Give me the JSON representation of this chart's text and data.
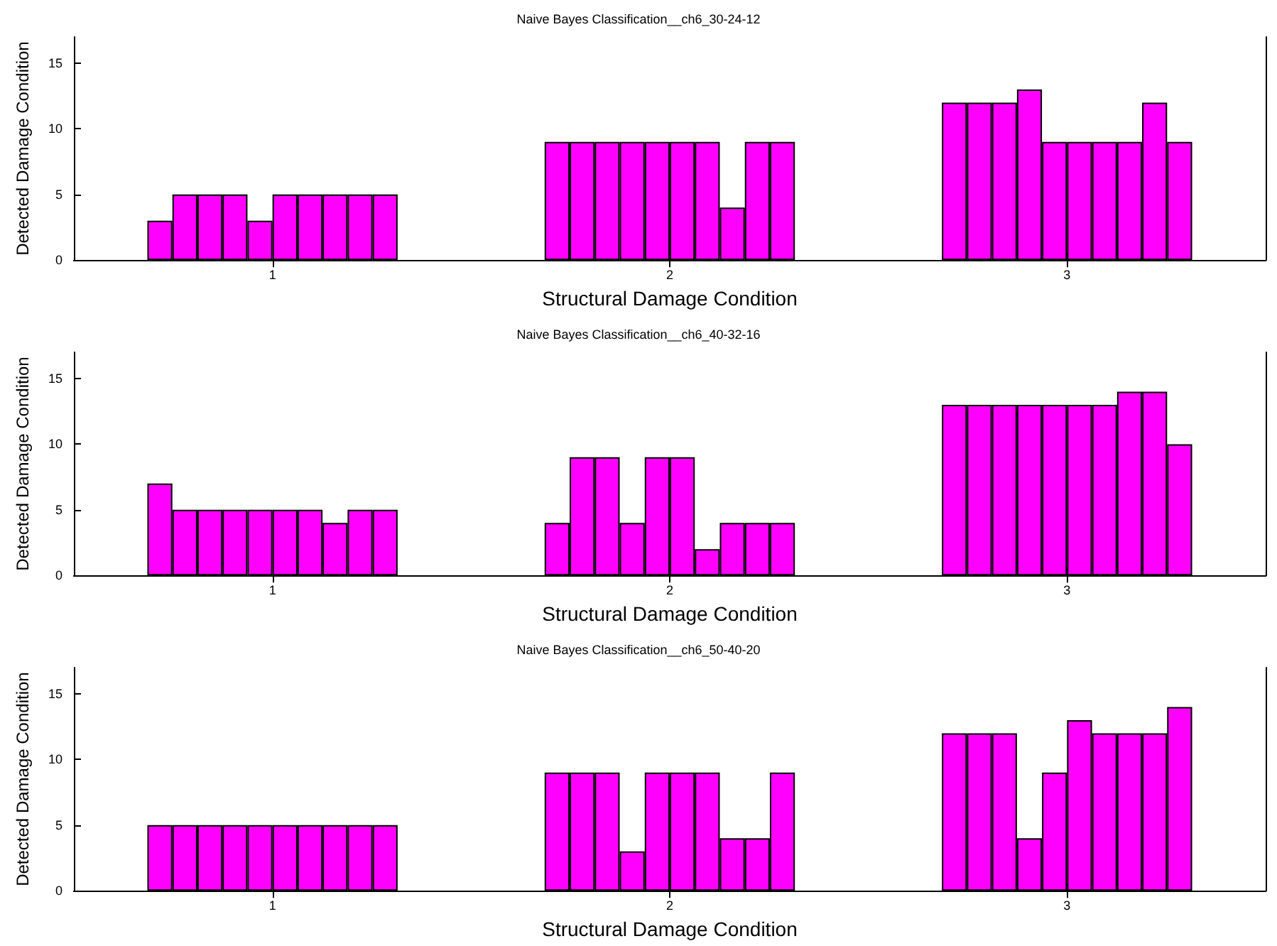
{
  "chart_data": [
    {
      "type": "bar",
      "title": "Naive Bayes Classification__ch6_30-24-12",
      "xlabel": "Structural Damage Condition",
      "ylabel": "Detected Damage Condition",
      "categories": [
        "1",
        "2",
        "3"
      ],
      "ylim": [
        0,
        17
      ],
      "yticks": [
        0,
        5,
        10,
        15
      ],
      "series": [
        {
          "color": "#ff00ff",
          "values": [
            3,
            9,
            12
          ]
        },
        {
          "color": "#ff00ff",
          "values": [
            5,
            9,
            12
          ]
        },
        {
          "color": "#ff00ff",
          "values": [
            5,
            9,
            12
          ]
        },
        {
          "color": "#ff00ff",
          "values": [
            5,
            9,
            13
          ]
        },
        {
          "color": "#ff00ff",
          "values": [
            3,
            9,
            9
          ]
        },
        {
          "color": "#ff00ff",
          "values": [
            5,
            9,
            9
          ]
        },
        {
          "color": "#ff00ff",
          "values": [
            5,
            9,
            9
          ]
        },
        {
          "color": "#ff00ff",
          "values": [
            5,
            4,
            9
          ]
        },
        {
          "color": "#ff00ff",
          "values": [
            5,
            9,
            12
          ]
        },
        {
          "color": "#ff00ff",
          "values": [
            5,
            9,
            9
          ]
        }
      ]
    },
    {
      "type": "bar",
      "title": "Naive Bayes Classification__ch6_40-32-16",
      "xlabel": "Structural Damage Condition",
      "ylabel": "Detected Damage Condition",
      "categories": [
        "1",
        "2",
        "3"
      ],
      "ylim": [
        0,
        17
      ],
      "yticks": [
        0,
        5,
        10,
        15
      ],
      "series": [
        {
          "color": "#ff00ff",
          "values": [
            7,
            4,
            13
          ]
        },
        {
          "color": "#ff00ff",
          "values": [
            5,
            9,
            13
          ]
        },
        {
          "color": "#ff00ff",
          "values": [
            5,
            9,
            13
          ]
        },
        {
          "color": "#ff00ff",
          "values": [
            5,
            4,
            13
          ]
        },
        {
          "color": "#ff00ff",
          "values": [
            5,
            9,
            13
          ]
        },
        {
          "color": "#ff00ff",
          "values": [
            5,
            9,
            13
          ]
        },
        {
          "color": "#ff00ff",
          "values": [
            5,
            2,
            13
          ]
        },
        {
          "color": "#ff00ff",
          "values": [
            4,
            4,
            14
          ]
        },
        {
          "color": "#ff00ff",
          "values": [
            5,
            4,
            14
          ]
        },
        {
          "color": "#ff00ff",
          "values": [
            5,
            4,
            10
          ]
        }
      ]
    },
    {
      "type": "bar",
      "title": "Naive Bayes Classification__ch6_50-40-20",
      "xlabel": "Structural Damage Condition",
      "ylabel": "Detected Damage Condition",
      "categories": [
        "1",
        "2",
        "3"
      ],
      "ylim": [
        0,
        17
      ],
      "yticks": [
        0,
        5,
        10,
        15
      ],
      "series": [
        {
          "color": "#ff00ff",
          "values": [
            5,
            9,
            12
          ]
        },
        {
          "color": "#ff00ff",
          "values": [
            5,
            9,
            12
          ]
        },
        {
          "color": "#ff00ff",
          "values": [
            5,
            9,
            12
          ]
        },
        {
          "color": "#ff00ff",
          "values": [
            5,
            3,
            4
          ]
        },
        {
          "color": "#ff00ff",
          "values": [
            5,
            9,
            9
          ]
        },
        {
          "color": "#ff00ff",
          "values": [
            5,
            9,
            13
          ]
        },
        {
          "color": "#ff00ff",
          "values": [
            5,
            9,
            12
          ]
        },
        {
          "color": "#ff00ff",
          "values": [
            5,
            4,
            12
          ]
        },
        {
          "color": "#ff00ff",
          "values": [
            5,
            4,
            12
          ]
        },
        {
          "color": "#ff00ff",
          "values": [
            5,
            9,
            14
          ]
        }
      ]
    }
  ]
}
